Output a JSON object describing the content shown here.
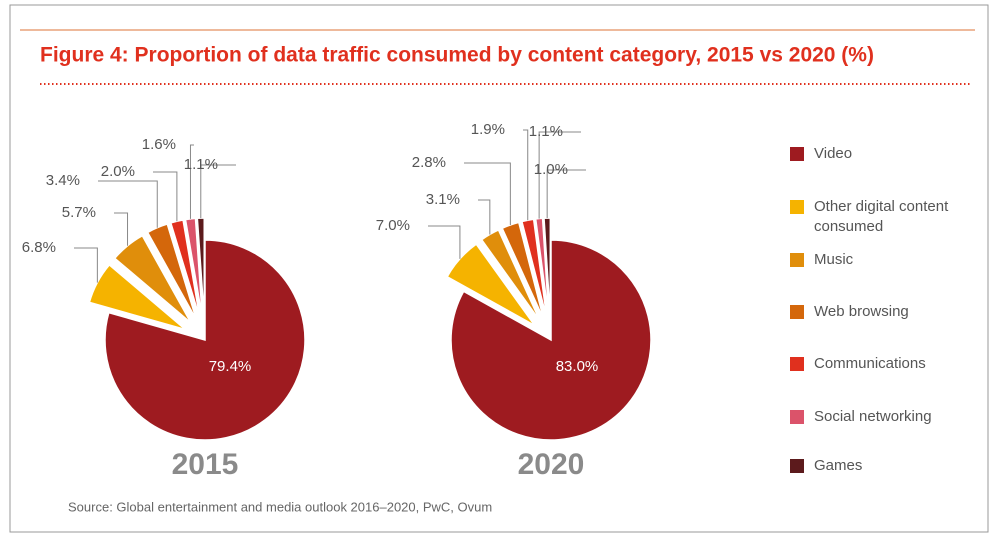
{
  "title": "Figure 4: Proportion of data traffic consumed by content category, 2015 vs 2020 (%)",
  "source": "Source: Global entertainment and media outlook 2016–2020, PwC, Ovum",
  "chart_data": [
    {
      "type": "pie",
      "title": "2015",
      "categories": [
        "Video",
        "Other digital content consumed",
        "Music",
        "Web browsing",
        "Communications",
        "Social networking",
        "Games"
      ],
      "values": [
        79.4,
        6.8,
        5.7,
        3.4,
        2.0,
        1.6,
        1.1
      ],
      "value_labels": [
        "79.4%",
        "6.8%",
        "5.7%",
        "3.4%",
        "2.0%",
        "1.6%",
        "1.1%"
      ],
      "colors": [
        "#9e1b20",
        "#f5b300",
        "#e08e0b",
        "#d4670b",
        "#e0301e",
        "#db536a",
        "#5c1a1c"
      ]
    },
    {
      "type": "pie",
      "title": "2020",
      "categories": [
        "Video",
        "Other digital content consumed",
        "Music",
        "Web browsing",
        "Communications",
        "Social networking",
        "Games"
      ],
      "values": [
        83.0,
        7.0,
        3.1,
        2.8,
        1.9,
        1.1,
        1.0
      ],
      "value_labels": [
        "83.0%",
        "7.0%",
        "3.1%",
        "2.8%",
        "1.9%",
        "1.1%",
        "1.0%"
      ],
      "colors": [
        "#9e1b20",
        "#f5b300",
        "#e08e0b",
        "#d4670b",
        "#e0301e",
        "#db536a",
        "#5c1a1c"
      ]
    }
  ]
}
